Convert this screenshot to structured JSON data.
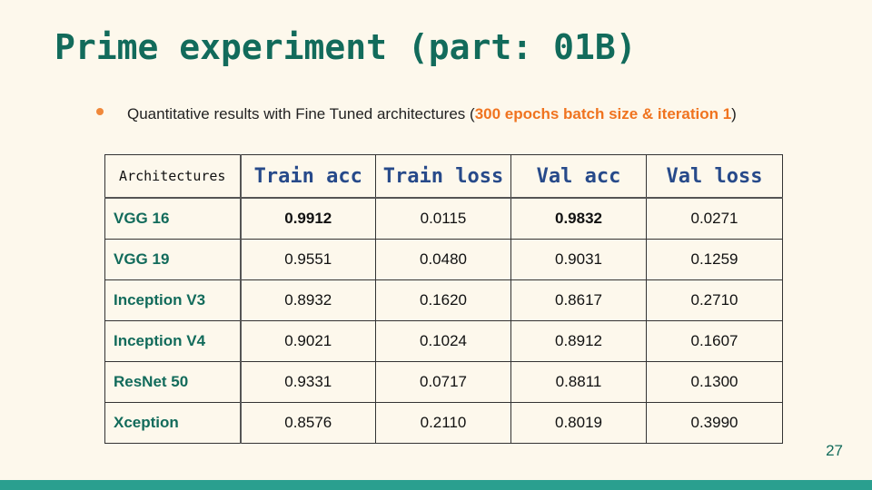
{
  "slide": {
    "title": "Prime experiment (part: 01B)",
    "bullet": {
      "prefix": "Quantitative results with Fine Tuned architectures (",
      "highlight": "300 epochs batch size & iteration 1",
      "suffix": ")"
    },
    "page_number": "27"
  },
  "table": {
    "headers": [
      "Architectures",
      "Train acc",
      "Train loss",
      "Val acc",
      "Val loss"
    ],
    "rows": [
      {
        "arch": "VGG 16",
        "train_acc": "0.9912",
        "train_loss": "0.0115",
        "val_acc": "0.9832",
        "val_loss": "0.0271"
      },
      {
        "arch": "VGG 19",
        "train_acc": "0.9551",
        "train_loss": "0.0480",
        "val_acc": "0.9031",
        "val_loss": "0.1259"
      },
      {
        "arch": "Inception V3",
        "train_acc": "0.8932",
        "train_loss": "0.1620",
        "val_acc": "0.8617",
        "val_loss": "0.2710"
      },
      {
        "arch": "Inception V4",
        "train_acc": "0.9021",
        "train_loss": "0.1024",
        "val_acc": "0.8912",
        "val_loss": "0.1607"
      },
      {
        "arch": "ResNet 50",
        "train_acc": "0.9331",
        "train_loss": "0.0717",
        "val_acc": "0.8811",
        "val_loss": "0.1300"
      },
      {
        "arch": "Xception",
        "train_acc": "0.8576",
        "train_loss": "0.2110",
        "val_acc": "0.8019",
        "val_loss": "0.3990"
      }
    ]
  },
  "colors": {
    "title": "#126b5b",
    "header_metric": "#274a8a",
    "highlight": "#f0731f",
    "bullet_dot": "#f0883a",
    "bottom_bar": "#2a9f8f",
    "background": "#fdf8ec"
  }
}
